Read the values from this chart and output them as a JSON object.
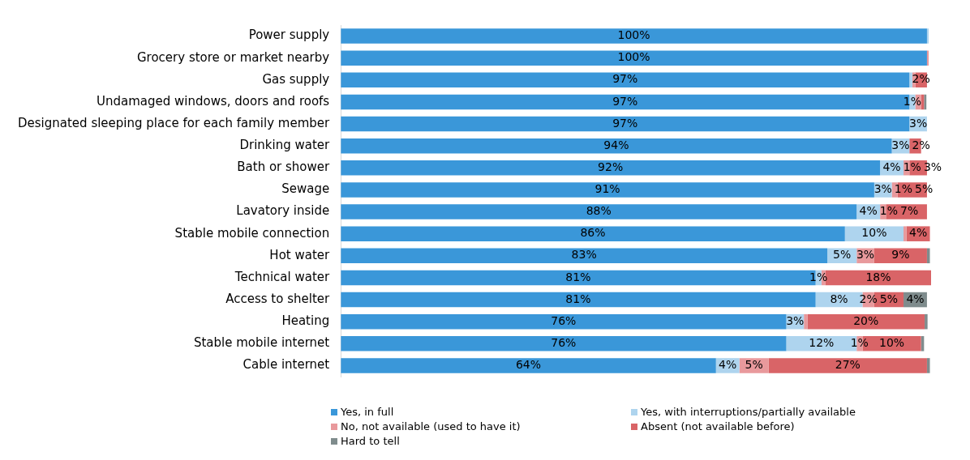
{
  "chart_data": {
    "type": "bar",
    "orientation": "horizontal",
    "stacked": true,
    "legend": "bottom",
    "categories": [
      "Power supply",
      "Grocery store or market nearby",
      "Gas supply",
      "Undamaged windows, doors and roofs",
      "Designated sleeping place for each family member",
      "Drinking water",
      "Bath or shower",
      "Sewage",
      "Lavatory inside",
      "Stable mobile connection",
      "Hot water",
      "Technical water",
      "Access to shelter",
      "Heating",
      "Stable mobile internet",
      "Cable internet"
    ],
    "series": [
      {
        "name": "Yes, in full",
        "color": "#3a97d9",
        "values": [
          100,
          100,
          97,
          97,
          97,
          94,
          92,
          91,
          88,
          86,
          83,
          81,
          81,
          76,
          76,
          64
        ],
        "value_labels": [
          "100%",
          "100%",
          "97%",
          "97%",
          "97%",
          "94%",
          "92%",
          "91%",
          "88%",
          "86%",
          "83%",
          "81%",
          "81%",
          "76%",
          "76%",
          "64%"
        ]
      },
      {
        "name": "Yes, with interruptions/partially available",
        "color": "#aed4ee",
        "values": [
          0.3,
          null,
          0.5,
          1,
          3,
          3,
          4,
          3,
          4,
          10,
          5,
          1,
          8,
          3,
          12,
          4
        ],
        "value_labels": [
          null,
          null,
          null,
          "1%",
          "3%",
          "3%",
          "4%",
          "3%",
          "4%",
          "10%",
          "5%",
          "1%",
          "8%",
          "3%",
          "12%",
          "4%"
        ]
      },
      {
        "name": "No, not available (used to have it)",
        "color": "#e8999c",
        "values": [
          null,
          0.3,
          0.5,
          1,
          null,
          null,
          1,
          1,
          1,
          0.5,
          3,
          0.7,
          2,
          0.6,
          1,
          5
        ],
        "value_labels": [
          null,
          null,
          null,
          null,
          null,
          null,
          "1%",
          "1%",
          "1%",
          null,
          "3%",
          null,
          "2%",
          null,
          "1%",
          "5%"
        ]
      },
      {
        "name": "Absent (not available before)",
        "color": "#d96467",
        "values": [
          null,
          null,
          2,
          0.5,
          null,
          2,
          3,
          5,
          7,
          4,
          9,
          18,
          5,
          20,
          10,
          27
        ],
        "value_labels": [
          null,
          null,
          "2%",
          null,
          null,
          "2%",
          "3%",
          "5%",
          "7%",
          "4%",
          "9%",
          "18%",
          "5%",
          "20%",
          "10%",
          "27%"
        ]
      },
      {
        "name": "Hard to tell",
        "color": "#7f8c8d",
        "values": [
          null,
          null,
          null,
          0.4,
          null,
          null,
          null,
          null,
          null,
          null,
          0.5,
          null,
          4,
          0.5,
          0.5,
          0.5
        ],
        "value_labels": [
          null,
          null,
          null,
          null,
          null,
          null,
          null,
          null,
          null,
          null,
          null,
          null,
          "4%",
          null,
          null,
          null
        ]
      }
    ]
  }
}
